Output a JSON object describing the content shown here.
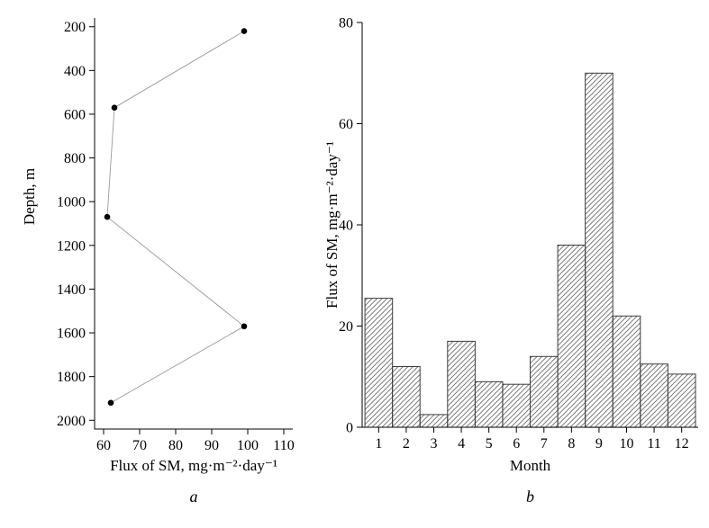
{
  "page": {
    "background": "#ffffff"
  },
  "chart_data": [
    {
      "id": "depth-profile",
      "type": "scatter",
      "panel_label": "a",
      "xlabel": "Flux of SM, mg·m⁻²·day⁻¹",
      "ylabel": "Depth, m",
      "xlim": [
        57.5,
        112.5
      ],
      "ylim": [
        160,
        2040
      ],
      "xticks": [
        60,
        70,
        80,
        90,
        100,
        110
      ],
      "yticks": [
        200,
        400,
        600,
        800,
        1000,
        1200,
        1400,
        1600,
        1800,
        2000
      ],
      "points": [
        {
          "x": 99,
          "y": 220
        },
        {
          "x": 63,
          "y": 570
        },
        {
          "x": 61,
          "y": 1070
        },
        {
          "x": 99,
          "y": 1570
        },
        {
          "x": 62,
          "y": 1920
        }
      ],
      "marker_color": "#000000",
      "line_color": "#9a9a9a",
      "legend": "none",
      "grid": false
    },
    {
      "id": "monthly-flux",
      "type": "bar",
      "panel_label": "b",
      "xlabel": "Month",
      "ylabel": "Flux of SM, mg·m⁻²·day⁻¹",
      "categories": [
        1,
        2,
        3,
        4,
        5,
        6,
        7,
        8,
        9,
        10,
        11,
        12
      ],
      "values": [
        25.5,
        12,
        2.5,
        17,
        9,
        8.5,
        14,
        36,
        70,
        22,
        12.5,
        10.5
      ],
      "xlim": [
        0.4,
        12.6
      ],
      "ylim": [
        0,
        80
      ],
      "yticks": [
        0,
        20,
        40,
        60,
        80
      ],
      "bar_fill": "diagonal-hatch",
      "hatch_color": "#6e6e6e",
      "bar_edge_color": "#3c3c3c",
      "legend": "none",
      "grid": false
    }
  ]
}
